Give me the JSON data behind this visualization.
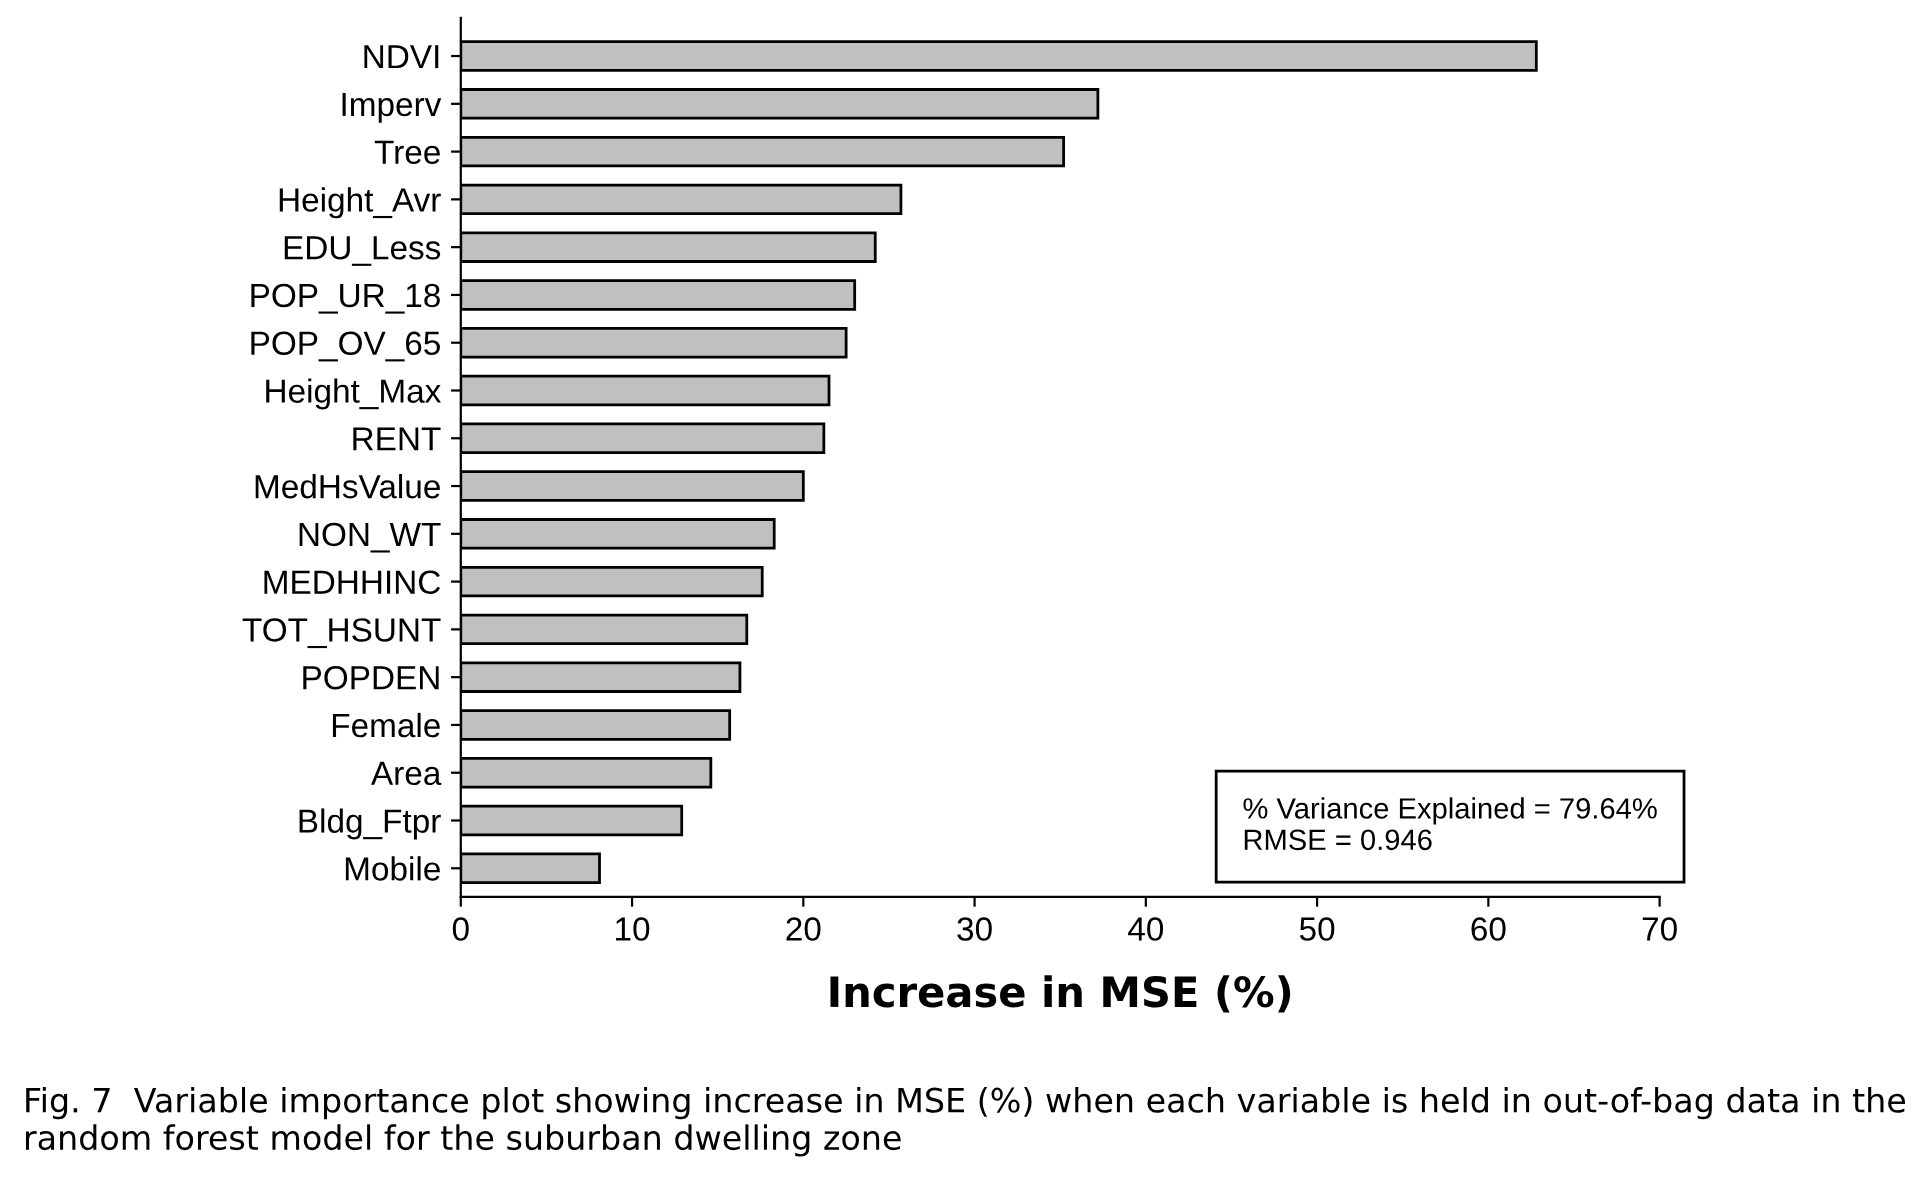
{
  "chart_data": {
    "type": "bar",
    "orientation": "horizontal",
    "xlabel": "Increase in MSE (%)",
    "categories": [
      "NDVI",
      "Imperv",
      "Tree",
      "Height_Avr",
      "EDU_Less",
      "POP_UR_18",
      "POP_OV_65",
      "Height_Max",
      "RENT",
      "MedHsValue",
      "NON_WT",
      "MEDHHINC",
      "TOT_HSUNT",
      "POPDEN",
      "Female",
      "Area",
      "Bldg_Ftpr",
      "Mobile"
    ],
    "values": [
      62.8,
      37.2,
      35.2,
      25.7,
      24.2,
      23.0,
      22.5,
      21.5,
      21.2,
      20.0,
      18.3,
      17.6,
      16.7,
      16.3,
      15.7,
      14.6,
      12.9,
      8.1
    ],
    "color": "#c0c0c0",
    "xlim": [
      0,
      70
    ],
    "xticks": [
      0,
      10,
      20,
      30,
      40,
      50,
      60,
      70
    ],
    "grid": false,
    "legend": false,
    "annotations": [
      "% Variance Explained = 79.64%\nRMSE = 0.946",
      "Fig. 7  Variable importance plot showing increase in MSE (%) when each variable is held in out-of-bag data in the random forest model for the suburban dwelling zone"
    ]
  }
}
